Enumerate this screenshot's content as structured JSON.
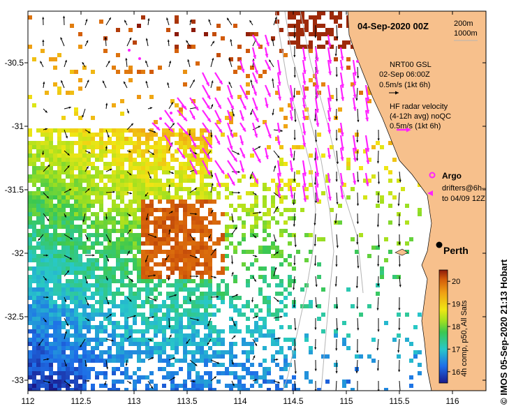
{
  "title": "04-Sep-2020 00Z",
  "depth_labels": [
    "200m",
    "1000m"
  ],
  "gsl": {
    "name": "NRT00 GSL",
    "time": "02-Sep 06:00Z",
    "scale": "0.5m/s (1kt 6h)"
  },
  "hf_radar": {
    "line1": "HF radar velocity",
    "line2": "(4-12h avg) noQC",
    "scale": "0.5m/s (1kt 6h)"
  },
  "argo_label": "Argo",
  "drifters": {
    "line1": "drifters@6h–",
    "line2": "to 04/09 12Z"
  },
  "city": "Perth",
  "colorbar": {
    "label": "4h comp, p50, All Sats",
    "ticks": [
      "16",
      "17",
      "18",
      "19",
      "20"
    ],
    "min": 15.5,
    "max": 20.5
  },
  "x_ticks": [
    "112",
    "112.5",
    "113",
    "113.5",
    "114",
    "114.5",
    "115",
    "115.5",
    "116"
  ],
  "y_ticks": [
    "-30.5",
    "-31",
    "-31.5",
    "-32",
    "-32.5",
    "-33"
  ],
  "side_label": "© IMOS 05-Sep-2020 21:13 Hobart",
  "colors": {
    "land": "#f7c08c",
    "argo": "#ff22ff",
    "hf": "#ff22ff",
    "axis": "#000000"
  }
}
